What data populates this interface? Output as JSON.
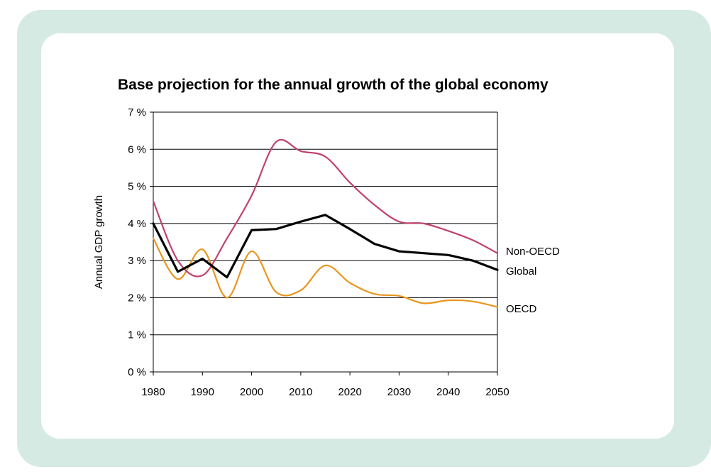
{
  "colors": {
    "frame": "#d5eae3",
    "card": "#ffffff",
    "grid": "#000000",
    "non_oecd": "#c0426b",
    "global": "#000000",
    "oecd": "#e8961e"
  },
  "chart_data": {
    "type": "line",
    "title": "Base projection for the annual growth of the global economy",
    "xlabel": "",
    "ylabel": "Annual GDP growth",
    "xlim": [
      1980,
      2050
    ],
    "ylim": [
      0,
      7
    ],
    "x_ticks": [
      1980,
      1990,
      2000,
      2010,
      2020,
      2030,
      2040,
      2050
    ],
    "y_ticks": [
      {
        "value": 0,
        "label": "0 %"
      },
      {
        "value": 1,
        "label": "1 %"
      },
      {
        "value": 2,
        "label": "2 %"
      },
      {
        "value": 3,
        "label": "3 %"
      },
      {
        "value": 4,
        "label": "4 %"
      },
      {
        "value": 5,
        "label": "5 %"
      },
      {
        "value": 6,
        "label": "6 %"
      },
      {
        "value": 7,
        "label": "7 %"
      }
    ],
    "grid": true,
    "series": [
      {
        "name": "Non-OECD",
        "color_key": "non_oecd",
        "smooth": true,
        "x": [
          1980,
          1985,
          1990,
          1995,
          2000,
          2005,
          2010,
          2015,
          2020,
          2025,
          2030,
          2035,
          2040,
          2045,
          2050
        ],
        "values": [
          4.6,
          3.0,
          2.6,
          3.6,
          4.75,
          6.2,
          5.95,
          5.8,
          5.1,
          4.5,
          4.05,
          4.0,
          3.8,
          3.55,
          3.2
        ]
      },
      {
        "name": "Global",
        "color_key": "global",
        "smooth": false,
        "x": [
          1980,
          1985,
          1990,
          1995,
          2000,
          2005,
          2010,
          2015,
          2020,
          2025,
          2030,
          2035,
          2040,
          2045,
          2050
        ],
        "values": [
          4.0,
          2.7,
          3.05,
          2.55,
          3.82,
          3.85,
          4.05,
          4.23,
          3.85,
          3.45,
          3.25,
          3.2,
          3.15,
          3.0,
          2.75
        ]
      },
      {
        "name": "OECD",
        "color_key": "oecd",
        "smooth": true,
        "x": [
          1980,
          1985,
          1990,
          1995,
          2000,
          2005,
          2010,
          2015,
          2020,
          2025,
          2030,
          2035,
          2040,
          2045,
          2050
        ],
        "values": [
          3.6,
          2.5,
          3.3,
          2.0,
          3.25,
          2.15,
          2.2,
          2.87,
          2.4,
          2.1,
          2.05,
          1.85,
          1.93,
          1.9,
          1.75
        ]
      }
    ]
  }
}
